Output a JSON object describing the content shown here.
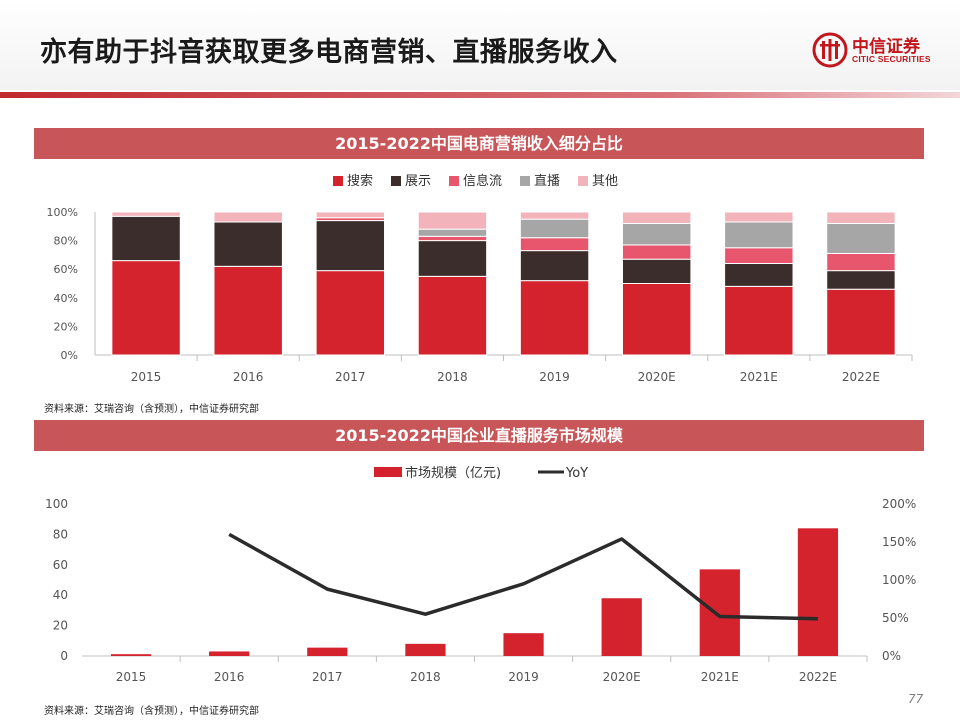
{
  "page": {
    "title": "亦有助于抖音获取更多电商营销、直播服务收入",
    "logo_cn": "中信证券",
    "logo_en": "CITIC SECURITIES",
    "page_number": "77",
    "colors": {
      "brand_red": "#c0161c",
      "bar_red": "#d4232d",
      "section_bar": "#c85557"
    }
  },
  "chart_data": [
    {
      "type": "bar",
      "stacked": true,
      "title": "2015-2022中国电商营销收入细分占比",
      "categories": [
        "2015",
        "2016",
        "2017",
        "2018",
        "2019",
        "2020E",
        "2021E",
        "2022E"
      ],
      "series": [
        {
          "name": "搜索",
          "color": "#d4232d",
          "values": [
            0.66,
            0.62,
            0.59,
            0.55,
            0.52,
            0.5,
            0.48,
            0.46
          ]
        },
        {
          "name": "展示",
          "color": "#3a2d2b",
          "values": [
            0.31,
            0.31,
            0.35,
            0.25,
            0.21,
            0.17,
            0.16,
            0.13
          ]
        },
        {
          "name": "信息流",
          "color": "#e8566d",
          "values": [
            0.0,
            0.0,
            0.02,
            0.03,
            0.09,
            0.1,
            0.11,
            0.12
          ]
        },
        {
          "name": "直播",
          "color": "#a6a6a6",
          "values": [
            0.0,
            0.0,
            0.0,
            0.05,
            0.13,
            0.15,
            0.18,
            0.21
          ]
        },
        {
          "name": "其他",
          "color": "#f2b3bb",
          "values": [
            0.03,
            0.07,
            0.04,
            0.12,
            0.05,
            0.08,
            0.07,
            0.08
          ]
        }
      ],
      "y_ticks": [
        "0%",
        "20%",
        "40%",
        "60%",
        "80%",
        "100%"
      ],
      "ylim": [
        0,
        1
      ],
      "legend_position": "top-center",
      "source": "资料来源：艾瑞咨询（含预测），中信证券研究部"
    },
    {
      "type": "bar",
      "title": "2015-2022中国企业直播服务市场规模",
      "categories": [
        "2015",
        "2016",
        "2017",
        "2018",
        "2019",
        "2020E",
        "2021E",
        "2022E"
      ],
      "bar_series": {
        "name": "市场规模（亿元)",
        "color": "#d4232d",
        "values": [
          1.2,
          3,
          5.5,
          8,
          15,
          38,
          57,
          84
        ]
      },
      "line_series": {
        "name": "YoY",
        "color": "#2b2b2b",
        "values": [
          null,
          1.6,
          0.88,
          0.55,
          0.95,
          1.54,
          0.52,
          0.49
        ]
      },
      "y_left_ticks": [
        "0",
        "20",
        "40",
        "60",
        "80",
        "100"
      ],
      "y_right_ticks": [
        "0%",
        "50%",
        "100%",
        "150%",
        "200%"
      ],
      "ylim_left": [
        0,
        100
      ],
      "ylim_right": [
        0,
        2
      ],
      "legend_position": "top-center",
      "source": "资料来源：艾瑞咨询（含预测），中信证券研究部"
    }
  ]
}
